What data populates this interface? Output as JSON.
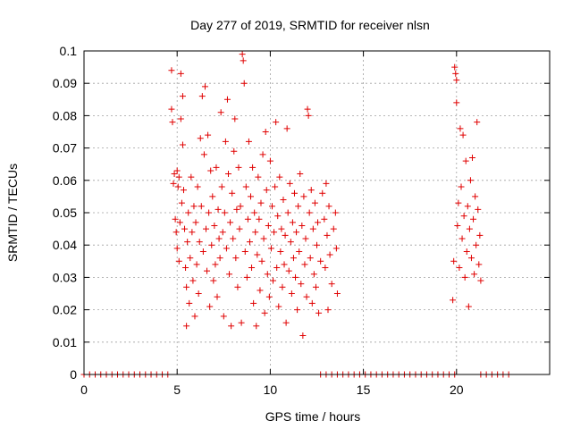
{
  "chart_data": {
    "type": "scatter",
    "title": "Day 277 of 2019, SRMTID for receiver nlsn",
    "xlabel": "GPS time / hours",
    "ylabel": "SRMTID / TECUs",
    "xlim": [
      0,
      25
    ],
    "ylim": [
      0,
      0.1
    ],
    "x_ticks": [
      0,
      5,
      10,
      15,
      20
    ],
    "x_tick_labels": [
      "0",
      "5",
      "10",
      "15",
      "20"
    ],
    "y_ticks": [
      0,
      0.01,
      0.02,
      0.03,
      0.04,
      0.05,
      0.06,
      0.07,
      0.08,
      0.09,
      0.1
    ],
    "y_tick_labels": [
      "0",
      "0.01",
      "0.02",
      "0.03",
      "0.04",
      "0.05",
      "0.06",
      "0.07",
      "0.08",
      "0.09",
      "0.1"
    ],
    "grid": true,
    "marker": "plus",
    "color": "#e00000",
    "series": [
      {
        "points": [
          [
            4.7,
            0.094
          ],
          [
            4.7,
            0.082
          ],
          [
            4.75,
            0.078
          ],
          [
            4.8,
            0.059
          ],
          [
            4.85,
            0.062
          ],
          [
            4.9,
            0.048
          ],
          [
            4.95,
            0.044
          ],
          [
            5.0,
            0.063
          ],
          [
            5.0,
            0.039
          ],
          [
            5.05,
            0.058
          ],
          [
            5.1,
            0.061
          ],
          [
            5.1,
            0.035
          ],
          [
            5.15,
            0.047
          ],
          [
            5.2,
            0.093
          ],
          [
            5.2,
            0.079
          ],
          [
            5.25,
            0.053
          ],
          [
            5.3,
            0.086
          ],
          [
            5.3,
            0.071
          ],
          [
            5.35,
            0.057
          ],
          [
            5.4,
            0.045
          ],
          [
            5.45,
            0.033
          ],
          [
            5.5,
            0.027
          ],
          [
            5.5,
            0.015
          ],
          [
            5.55,
            0.041
          ],
          [
            5.6,
            0.05
          ],
          [
            5.65,
            0.022
          ],
          [
            5.7,
            0.036
          ],
          [
            5.75,
            0.061
          ],
          [
            5.8,
            0.044
          ],
          [
            5.85,
            0.029
          ],
          [
            5.9,
            0.052
          ],
          [
            5.95,
            0.018
          ],
          [
            6.0,
            0.047
          ],
          [
            6.05,
            0.034
          ],
          [
            6.1,
            0.058
          ],
          [
            6.15,
            0.025
          ],
          [
            6.2,
            0.041
          ],
          [
            6.25,
            0.073
          ],
          [
            6.3,
            0.052
          ],
          [
            6.35,
            0.086
          ],
          [
            6.4,
            0.038
          ],
          [
            6.45,
            0.068
          ],
          [
            6.5,
            0.089
          ],
          [
            6.55,
            0.045
          ],
          [
            6.6,
            0.032
          ],
          [
            6.65,
            0.074
          ],
          [
            6.7,
            0.05
          ],
          [
            6.75,
            0.021
          ],
          [
            6.8,
            0.063
          ],
          [
            6.85,
            0.04
          ],
          [
            6.9,
            0.055
          ],
          [
            6.95,
            0.029
          ],
          [
            7.0,
            0.046
          ],
          [
            7.05,
            0.034
          ],
          [
            7.1,
            0.064
          ],
          [
            7.15,
            0.024
          ],
          [
            7.2,
            0.051
          ],
          [
            7.25,
            0.042
          ],
          [
            7.3,
            0.036
          ],
          [
            7.35,
            0.081
          ],
          [
            7.4,
            0.058
          ],
          [
            7.45,
            0.044
          ],
          [
            7.5,
            0.018
          ],
          [
            7.55,
            0.05
          ],
          [
            7.6,
            0.072
          ],
          [
            7.65,
            0.039
          ],
          [
            7.7,
            0.085
          ],
          [
            7.75,
            0.062
          ],
          [
            7.8,
            0.031
          ],
          [
            7.85,
            0.047
          ],
          [
            7.9,
            0.015
          ],
          [
            7.95,
            0.056
          ],
          [
            8.0,
            0.042
          ],
          [
            8.05,
            0.069
          ],
          [
            8.1,
            0.079
          ],
          [
            8.15,
            0.036
          ],
          [
            8.2,
            0.051
          ],
          [
            8.25,
            0.027
          ],
          [
            8.3,
            0.064
          ],
          [
            8.35,
            0.045
          ],
          [
            8.4,
            0.052
          ],
          [
            8.45,
            0.016
          ],
          [
            8.5,
            0.099
          ],
          [
            8.55,
            0.097
          ],
          [
            8.6,
            0.09
          ],
          [
            8.65,
            0.038
          ],
          [
            8.7,
            0.058
          ],
          [
            8.75,
            0.03
          ],
          [
            8.8,
            0.048
          ],
          [
            8.85,
            0.072
          ],
          [
            8.9,
            0.041
          ],
          [
            8.95,
            0.055
          ],
          [
            9.0,
            0.033
          ],
          [
            9.05,
            0.064
          ],
          [
            9.1,
            0.022
          ],
          [
            9.15,
            0.05
          ],
          [
            9.2,
            0.044
          ],
          [
            9.25,
            0.015
          ],
          [
            9.3,
            0.037
          ],
          [
            9.35,
            0.061
          ],
          [
            9.4,
            0.048
          ],
          [
            9.45,
            0.026
          ],
          [
            9.5,
            0.053
          ],
          [
            9.55,
            0.035
          ],
          [
            9.6,
            0.068
          ],
          [
            9.65,
            0.042
          ],
          [
            9.7,
            0.019
          ],
          [
            9.75,
            0.075
          ],
          [
            9.8,
            0.057
          ],
          [
            9.85,
            0.031
          ],
          [
            9.9,
            0.046
          ],
          [
            9.95,
            0.024
          ],
          [
            10.0,
            0.066
          ],
          [
            10.05,
            0.039
          ],
          [
            10.1,
            0.052
          ],
          [
            10.15,
            0.029
          ],
          [
            10.2,
            0.044
          ],
          [
            10.25,
            0.058
          ],
          [
            10.3,
            0.078
          ],
          [
            10.35,
            0.033
          ],
          [
            10.4,
            0.049
          ],
          [
            10.45,
            0.021
          ],
          [
            10.5,
            0.061
          ],
          [
            10.55,
            0.038
          ],
          [
            10.6,
            0.045
          ],
          [
            10.65,
            0.027
          ],
          [
            10.7,
            0.054
          ],
          [
            10.75,
            0.034
          ],
          [
            10.8,
            0.043
          ],
          [
            10.85,
            0.016
          ],
          [
            10.9,
            0.076
          ],
          [
            10.95,
            0.05
          ],
          [
            11.0,
            0.032
          ],
          [
            11.05,
            0.059
          ],
          [
            11.1,
            0.041
          ],
          [
            11.15,
            0.025
          ],
          [
            11.2,
            0.047
          ],
          [
            11.25,
            0.036
          ],
          [
            11.3,
            0.056
          ],
          [
            11.35,
            0.03
          ],
          [
            11.4,
            0.044
          ],
          [
            11.45,
            0.02
          ],
          [
            11.5,
            0.052
          ],
          [
            11.55,
            0.038
          ],
          [
            11.6,
            0.062
          ],
          [
            11.65,
            0.028
          ],
          [
            11.7,
            0.046
          ],
          [
            11.75,
            0.012
          ],
          [
            11.8,
            0.055
          ],
          [
            11.85,
            0.034
          ],
          [
            11.9,
            0.042
          ],
          [
            11.95,
            0.024
          ],
          [
            12.0,
            0.082
          ],
          [
            12.05,
            0.08
          ],
          [
            12.1,
            0.05
          ],
          [
            12.15,
            0.036
          ],
          [
            12.2,
            0.057
          ],
          [
            12.25,
            0.022
          ],
          [
            12.3,
            0.045
          ],
          [
            12.35,
            0.031
          ],
          [
            12.4,
            0.053
          ],
          [
            12.45,
            0.027
          ],
          [
            12.5,
            0.04
          ],
          [
            12.55,
            0.047
          ],
          [
            12.6,
            0.019
          ],
          [
            12.7,
            0.035
          ],
          [
            12.8,
            0.056
          ],
          [
            12.9,
            0.048
          ],
          [
            12.95,
            0.033
          ],
          [
            13.0,
            0.059
          ],
          [
            13.05,
            0.043
          ],
          [
            13.1,
            0.02
          ],
          [
            13.15,
            0.052
          ],
          [
            13.2,
            0.037
          ],
          [
            13.3,
            0.028
          ],
          [
            13.4,
            0.045
          ],
          [
            13.5,
            0.05
          ],
          [
            13.55,
            0.039
          ],
          [
            13.6,
            0.025
          ],
          [
            19.8,
            0.023
          ],
          [
            19.85,
            0.035
          ],
          [
            19.9,
            0.095
          ],
          [
            19.95,
            0.093
          ],
          [
            20.0,
            0.091
          ],
          [
            20.0,
            0.084
          ],
          [
            20.05,
            0.046
          ],
          [
            20.1,
            0.053
          ],
          [
            20.15,
            0.033
          ],
          [
            20.2,
            0.076
          ],
          [
            20.25,
            0.058
          ],
          [
            20.3,
            0.042
          ],
          [
            20.35,
            0.074
          ],
          [
            20.4,
            0.049
          ],
          [
            20.45,
            0.03
          ],
          [
            20.5,
            0.066
          ],
          [
            20.55,
            0.038
          ],
          [
            20.6,
            0.052
          ],
          [
            20.65,
            0.021
          ],
          [
            20.7,
            0.045
          ],
          [
            20.75,
            0.06
          ],
          [
            20.8,
            0.036
          ],
          [
            20.85,
            0.067
          ],
          [
            20.9,
            0.048
          ],
          [
            20.95,
            0.031
          ],
          [
            21.0,
            0.055
          ],
          [
            21.05,
            0.04
          ],
          [
            21.1,
            0.078
          ],
          [
            21.15,
            0.051
          ],
          [
            21.2,
            0.034
          ],
          [
            21.25,
            0.043
          ],
          [
            21.3,
            0.029
          ],
          [
            0.0,
            0.0
          ],
          [
            0.3,
            0.0
          ],
          [
            0.6,
            0.0
          ],
          [
            0.9,
            0.0
          ],
          [
            1.2,
            0.0
          ],
          [
            1.5,
            0.0
          ],
          [
            1.8,
            0.0
          ],
          [
            2.1,
            0.0
          ],
          [
            2.4,
            0.0
          ],
          [
            2.7,
            0.0
          ],
          [
            3.0,
            0.0
          ],
          [
            3.3,
            0.0
          ],
          [
            3.6,
            0.0
          ],
          [
            3.9,
            0.0
          ],
          [
            4.2,
            0.0
          ],
          [
            4.5,
            0.0
          ],
          [
            12.7,
            0.0
          ],
          [
            13.0,
            0.0
          ],
          [
            13.3,
            0.0
          ],
          [
            13.6,
            0.0
          ],
          [
            13.9,
            0.0
          ],
          [
            14.2,
            0.0
          ],
          [
            14.5,
            0.0
          ],
          [
            14.8,
            0.0
          ],
          [
            15.1,
            0.0
          ],
          [
            15.4,
            0.0
          ],
          [
            15.7,
            0.0
          ],
          [
            16.0,
            0.0
          ],
          [
            16.3,
            0.0
          ],
          [
            16.6,
            0.0
          ],
          [
            16.9,
            0.0
          ],
          [
            17.2,
            0.0
          ],
          [
            17.5,
            0.0
          ],
          [
            17.8,
            0.0
          ],
          [
            18.1,
            0.0
          ],
          [
            18.4,
            0.0
          ],
          [
            18.7,
            0.0
          ],
          [
            19.0,
            0.0
          ],
          [
            19.3,
            0.0
          ],
          [
            19.6,
            0.0
          ],
          [
            19.9,
            0.0
          ],
          [
            21.3,
            0.0
          ],
          [
            21.6,
            0.0
          ],
          [
            21.9,
            0.0
          ],
          [
            22.2,
            0.0
          ],
          [
            22.5,
            0.0
          ],
          [
            22.8,
            0.0
          ]
        ]
      }
    ]
  }
}
